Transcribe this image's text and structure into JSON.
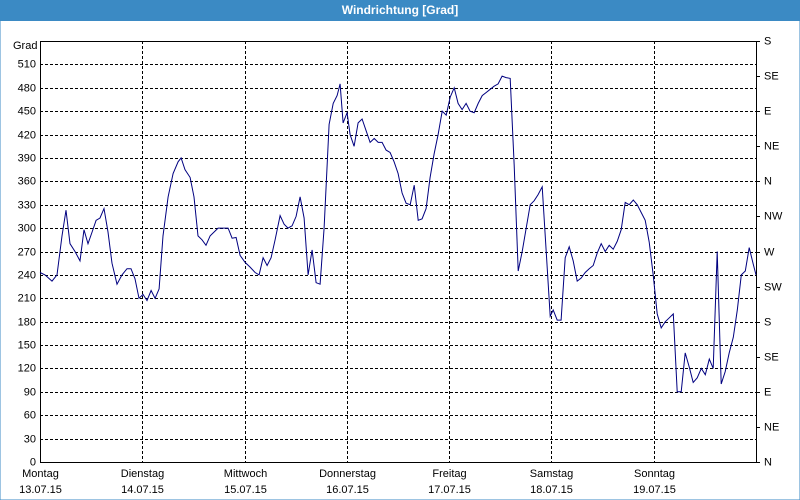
{
  "chart_data": {
    "type": "line",
    "title": "Windrichtung [Grad]",
    "y_label": "Grad",
    "color": "#000080",
    "x": [
      0,
      0.049,
      0.117,
      0.166,
      0.215,
      0.254,
      0.293,
      0.342,
      0.391,
      0.43,
      0.469,
      0.509,
      0.548,
      0.587,
      0.626,
      0.665,
      0.704,
      0.753,
      0.802,
      0.851,
      0.89,
      0.929,
      0.968,
      1.007,
      1.046,
      1.086,
      1.125,
      1.164,
      1.203,
      1.252,
      1.301,
      1.35,
      1.379,
      1.418,
      1.467,
      1.506,
      1.545,
      1.584,
      1.623,
      1.663,
      1.702,
      1.741,
      1.78,
      1.839,
      1.878,
      1.917,
      1.956,
      2.005,
      2.054,
      2.103,
      2.142,
      2.181,
      2.22,
      2.259,
      2.298,
      2.347,
      2.386,
      2.425,
      2.465,
      2.504,
      2.543,
      2.582,
      2.621,
      2.66,
      2.699,
      2.738,
      2.778,
      2.826,
      2.866,
      2.905,
      2.934,
      2.963,
      3.002,
      3.032,
      3.071,
      3.11,
      3.149,
      3.188,
      3.227,
      3.267,
      3.306,
      3.345,
      3.384,
      3.423,
      3.462,
      3.501,
      3.54,
      3.579,
      3.619,
      3.658,
      3.697,
      3.736,
      3.775,
      3.814,
      3.853,
      3.892,
      3.932,
      3.971,
      4.01,
      4.049,
      4.088,
      4.127,
      4.166,
      4.205,
      4.245,
      4.284,
      4.323,
      4.362,
      4.401,
      4.44,
      4.479,
      4.518,
      4.557,
      4.597,
      4.636,
      4.675,
      4.714,
      4.753,
      4.792,
      4.831,
      4.87,
      4.91,
      4.949,
      4.988,
      5.017,
      5.056,
      5.095,
      5.135,
      5.174,
      5.213,
      5.252,
      5.291,
      5.33,
      5.369,
      5.408,
      5.447,
      5.487,
      5.526,
      5.565,
      5.604,
      5.643,
      5.682,
      5.721,
      5.76,
      5.8,
      5.839,
      5.878,
      5.917,
      5.956,
      5.995,
      6.034,
      6.073,
      6.113,
      6.152,
      6.191,
      6.23,
      6.269,
      6.308,
      6.347,
      6.386,
      6.425,
      6.465,
      6.504,
      6.543,
      6.582,
      6.621,
      6.66,
      6.699,
      6.738,
      6.778,
      6.817,
      6.856,
      6.895,
      6.934,
      6.973,
      7
    ],
    "values": [
      243,
      240,
      232,
      240,
      290,
      323,
      280,
      270,
      258,
      298,
      280,
      295,
      310,
      313,
      325,
      295,
      255,
      228,
      240,
      248,
      248,
      235,
      210,
      215,
      207,
      220,
      210,
      222,
      290,
      340,
      370,
      385,
      390,
      375,
      365,
      340,
      290,
      285,
      278,
      290,
      295,
      300,
      300,
      300,
      287,
      288,
      265,
      256,
      250,
      243,
      240,
      262,
      252,
      262,
      285,
      316,
      305,
      300,
      303,
      315,
      340,
      313,
      240,
      272,
      230,
      228,
      300,
      433,
      460,
      470,
      485,
      435,
      448,
      420,
      405,
      435,
      440,
      425,
      410,
      415,
      410,
      410,
      400,
      397,
      385,
      370,
      345,
      332,
      330,
      355,
      310,
      312,
      325,
      365,
      395,
      420,
      450,
      445,
      468,
      480,
      460,
      452,
      460,
      450,
      448,
      460,
      470,
      474,
      478,
      482,
      485,
      495,
      493,
      492,
      380,
      245,
      270,
      300,
      330,
      335,
      343,
      353,
      270,
      187,
      195,
      182,
      182,
      262,
      276,
      258,
      232,
      236,
      243,
      248,
      252,
      268,
      280,
      270,
      278,
      273,
      283,
      298,
      333,
      330,
      336,
      330,
      320,
      310,
      282,
      240,
      190,
      172,
      180,
      185,
      190,
      90,
      90,
      140,
      122,
      102,
      108,
      120,
      112,
      132,
      120,
      270,
      100,
      116,
      140,
      160,
      195,
      240,
      245,
      275,
      254,
      240
    ],
    "xlim": [
      0,
      7
    ],
    "xticks": [
      {
        "value": 0,
        "label": "Montag"
      },
      {
        "value": 1,
        "label": "Dienstag"
      },
      {
        "value": 2,
        "label": "Mittwoch"
      },
      {
        "value": 3,
        "label": "Donnerstag"
      },
      {
        "value": 4,
        "label": "Freitag"
      },
      {
        "value": 5,
        "label": "Samstag"
      },
      {
        "value": 6,
        "label": "Sonntag"
      }
    ],
    "xtick_dates": [
      "13.07.15",
      "14.07.15",
      "15.07.15",
      "16.07.15",
      "17.07.15",
      "18.07.15",
      "19.07.15"
    ],
    "ylim": [
      0,
      540
    ],
    "yticks": [
      0,
      30,
      60,
      90,
      120,
      150,
      180,
      210,
      240,
      270,
      300,
      330,
      360,
      390,
      420,
      450,
      480,
      510
    ],
    "y2lim": [
      0,
      540
    ],
    "y2ticks": [
      {
        "value": 0,
        "label": "N"
      },
      {
        "value": 45,
        "label": "NE"
      },
      {
        "value": 90,
        "label": "E"
      },
      {
        "value": 135,
        "label": "SE"
      },
      {
        "value": 180,
        "label": "S"
      },
      {
        "value": 225,
        "label": "SW"
      },
      {
        "value": 270,
        "label": "W"
      },
      {
        "value": 315,
        "label": "NW"
      },
      {
        "value": 360,
        "label": "N"
      },
      {
        "value": 405,
        "label": "NE"
      },
      {
        "value": 450,
        "label": "E"
      },
      {
        "value": 495,
        "label": "SE"
      },
      {
        "value": 540,
        "label": "S"
      }
    ],
    "grid": true
  }
}
